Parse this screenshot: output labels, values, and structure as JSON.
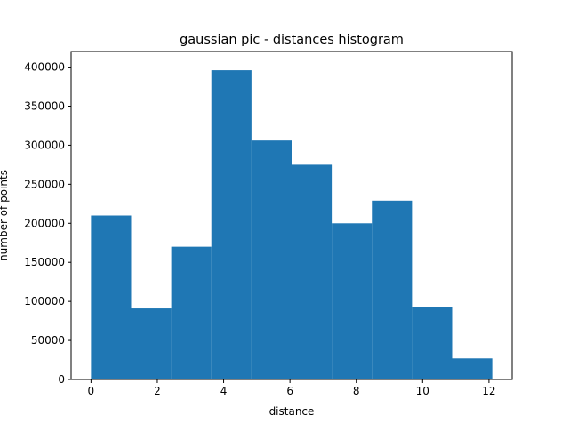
{
  "chart_data": {
    "type": "bar",
    "title": "gaussian pic - distances histogram",
    "xlabel": "distance",
    "ylabel": "number of points",
    "bin_edges": [
      0.0,
      1.21,
      2.42,
      3.63,
      4.84,
      6.05,
      7.26,
      8.47,
      9.68,
      10.89,
      12.1
    ],
    "values": [
      210000,
      91000,
      170000,
      396000,
      306000,
      275000,
      200000,
      229000,
      93000,
      27000
    ],
    "xlim": [
      -0.6,
      12.7
    ],
    "ylim": [
      0,
      420000
    ],
    "xticks": [
      0,
      2,
      4,
      6,
      8,
      10,
      12
    ],
    "xtick_labels": [
      "0",
      "2",
      "4",
      "6",
      "8",
      "10",
      "12"
    ],
    "yticks": [
      0,
      50000,
      100000,
      150000,
      200000,
      250000,
      300000,
      350000,
      400000
    ],
    "ytick_labels": [
      "0",
      "50000",
      "100000",
      "150000",
      "200000",
      "250000",
      "300000",
      "350000",
      "400000"
    ],
    "bar_color": "#1f77b4",
    "grid": false,
    "legend": "none"
  }
}
